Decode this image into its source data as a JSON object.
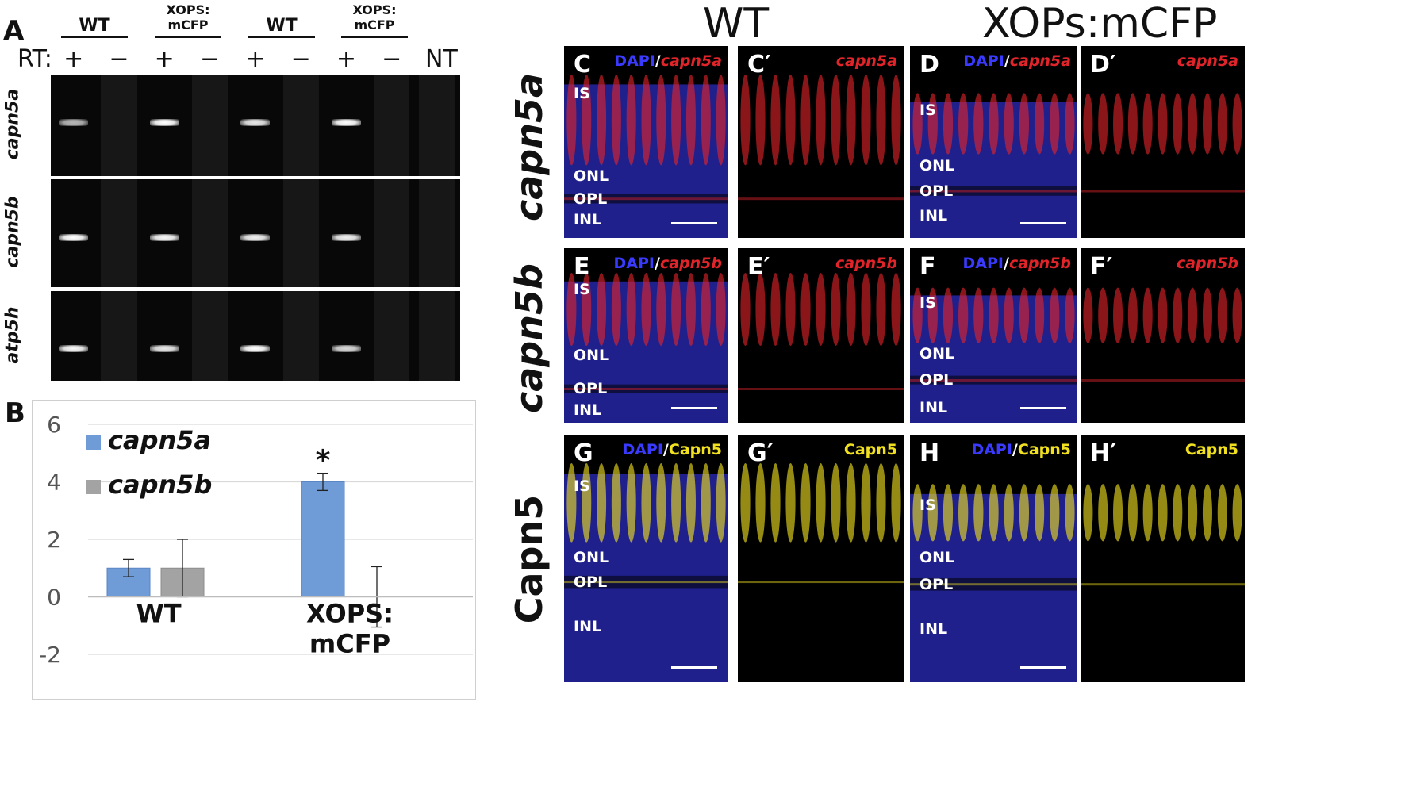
{
  "panels": {
    "A": "A",
    "B": "B",
    "gel": {
      "groups": [
        {
          "label": "WT"
        },
        {
          "label": "XOPS:\nmCFP"
        },
        {
          "label": "WT"
        },
        {
          "label": "XOPS:\nmCFP"
        }
      ],
      "rt_prefix": "RT:",
      "rt_marks": [
        "+",
        "−",
        "+",
        "−",
        "+",
        "−",
        "+",
        "−"
      ],
      "nt_label": "NT",
      "genes": [
        {
          "name": "capn5a",
          "band_intensity": [
            0.55,
            0.0,
            1.0,
            0.0,
            0.85,
            0.0,
            1.0,
            0.0,
            0.0
          ]
        },
        {
          "name": "capn5b",
          "band_intensity": [
            1.0,
            0.0,
            0.95,
            0.0,
            0.9,
            0.0,
            0.9,
            0.0,
            0.0
          ]
        },
        {
          "name": "atp5h",
          "band_intensity": [
            0.95,
            0.0,
            0.85,
            0.0,
            1.0,
            0.0,
            0.75,
            0.0,
            0.0
          ]
        }
      ]
    },
    "micro": {
      "columns": [
        "WT",
        "XOPs:mCFP"
      ],
      "rows": [
        "capn5a",
        "capn5b",
        "Capn5"
      ],
      "tiles": [
        {
          "letter": "C",
          "dapi": "DAPI",
          "slash": "/",
          "marker": "capn5a",
          "marker_italic": true,
          "color": "#e0242a",
          "merge": true,
          "layers": [
            {
              "name": "IS",
              "at": 0.25
            },
            {
              "name": "ONL",
              "at": 0.68
            },
            {
              "name": "OPL",
              "at": 0.8
            },
            {
              "name": "INL",
              "at": 0.91
            }
          ]
        },
        {
          "letter": "C′",
          "marker": "capn5a",
          "marker_italic": true,
          "color": "#e0242a",
          "merge": false
        },
        {
          "letter": "D",
          "dapi": "DAPI",
          "slash": "/",
          "marker": "capn5a",
          "marker_italic": true,
          "color": "#e0242a",
          "merge": true,
          "layers": [
            {
              "name": "IS",
              "at": 0.34
            },
            {
              "name": "ONL",
              "at": 0.63
            },
            {
              "name": "OPL",
              "at": 0.76
            },
            {
              "name": "INL",
              "at": 0.89
            }
          ]
        },
        {
          "letter": "D′",
          "marker": "capn5a",
          "marker_italic": true,
          "color": "#e0242a",
          "merge": false
        },
        {
          "letter": "E",
          "dapi": "DAPI",
          "slash": "/",
          "marker": "capn5b",
          "marker_italic": true,
          "color": "#e0242a",
          "merge": true,
          "layers": [
            {
              "name": "IS",
              "at": 0.24
            },
            {
              "name": "ONL",
              "at": 0.62
            },
            {
              "name": "OPL",
              "at": 0.81
            },
            {
              "name": "INL",
              "at": 0.93
            }
          ]
        },
        {
          "letter": "E′",
          "marker": "capn5b",
          "marker_italic": true,
          "color": "#e0242a",
          "merge": false
        },
        {
          "letter": "F",
          "dapi": "DAPI",
          "slash": "/",
          "marker": "capn5b",
          "marker_italic": true,
          "color": "#e0242a",
          "merge": true,
          "layers": [
            {
              "name": "IS",
              "at": 0.32
            },
            {
              "name": "ONL",
              "at": 0.61
            },
            {
              "name": "OPL",
              "at": 0.76
            },
            {
              "name": "INL",
              "at": 0.92
            }
          ]
        },
        {
          "letter": "F′",
          "marker": "capn5b",
          "marker_italic": true,
          "color": "#e0242a",
          "merge": false
        },
        {
          "letter": "G",
          "dapi": "DAPI",
          "slash": "/",
          "marker": "Capn5",
          "marker_italic": false,
          "color": "#f0e020",
          "merge": true,
          "layers": [
            {
              "name": "IS",
              "at": 0.21
            },
            {
              "name": "ONL",
              "at": 0.5
            },
            {
              "name": "OPL",
              "at": 0.6
            },
            {
              "name": "INL",
              "at": 0.78
            }
          ]
        },
        {
          "letter": "G′",
          "marker": "Capn5",
          "marker_italic": false,
          "color": "#f0e020",
          "merge": false
        },
        {
          "letter": "H",
          "dapi": "DAPI",
          "slash": "/",
          "marker": "Capn5",
          "marker_italic": false,
          "color": "#f0e020",
          "merge": true,
          "layers": [
            {
              "name": "IS",
              "at": 0.29
            },
            {
              "name": "ONL",
              "at": 0.5
            },
            {
              "name": "OPL",
              "at": 0.61
            },
            {
              "name": "INL",
              "at": 0.79
            }
          ]
        },
        {
          "letter": "H′",
          "marker": "Capn5",
          "marker_italic": false,
          "color": "#f0e020",
          "merge": false
        }
      ],
      "dapi_color": "#3a3aff"
    }
  },
  "chart_data": {
    "type": "bar",
    "categories": [
      "WT",
      "XOPS:\nmCFP"
    ],
    "series": [
      {
        "name": "capn5a",
        "color": "#6f9bd6",
        "values": [
          1.0,
          4.0
        ],
        "errors": [
          0.3,
          0.3
        ]
      },
      {
        "name": "capn5b",
        "color": "#a3a3a3",
        "values": [
          1.0,
          0.0
        ],
        "errors": [
          1.0,
          1.05
        ]
      }
    ],
    "annotations": [
      {
        "series": "capn5a",
        "category": "XOPS:\nmCFP",
        "text": "*"
      }
    ],
    "ylim": [
      -2,
      6
    ],
    "yticks": [
      -2,
      0,
      2,
      4,
      6
    ],
    "grid": true,
    "legend": "top-left"
  }
}
